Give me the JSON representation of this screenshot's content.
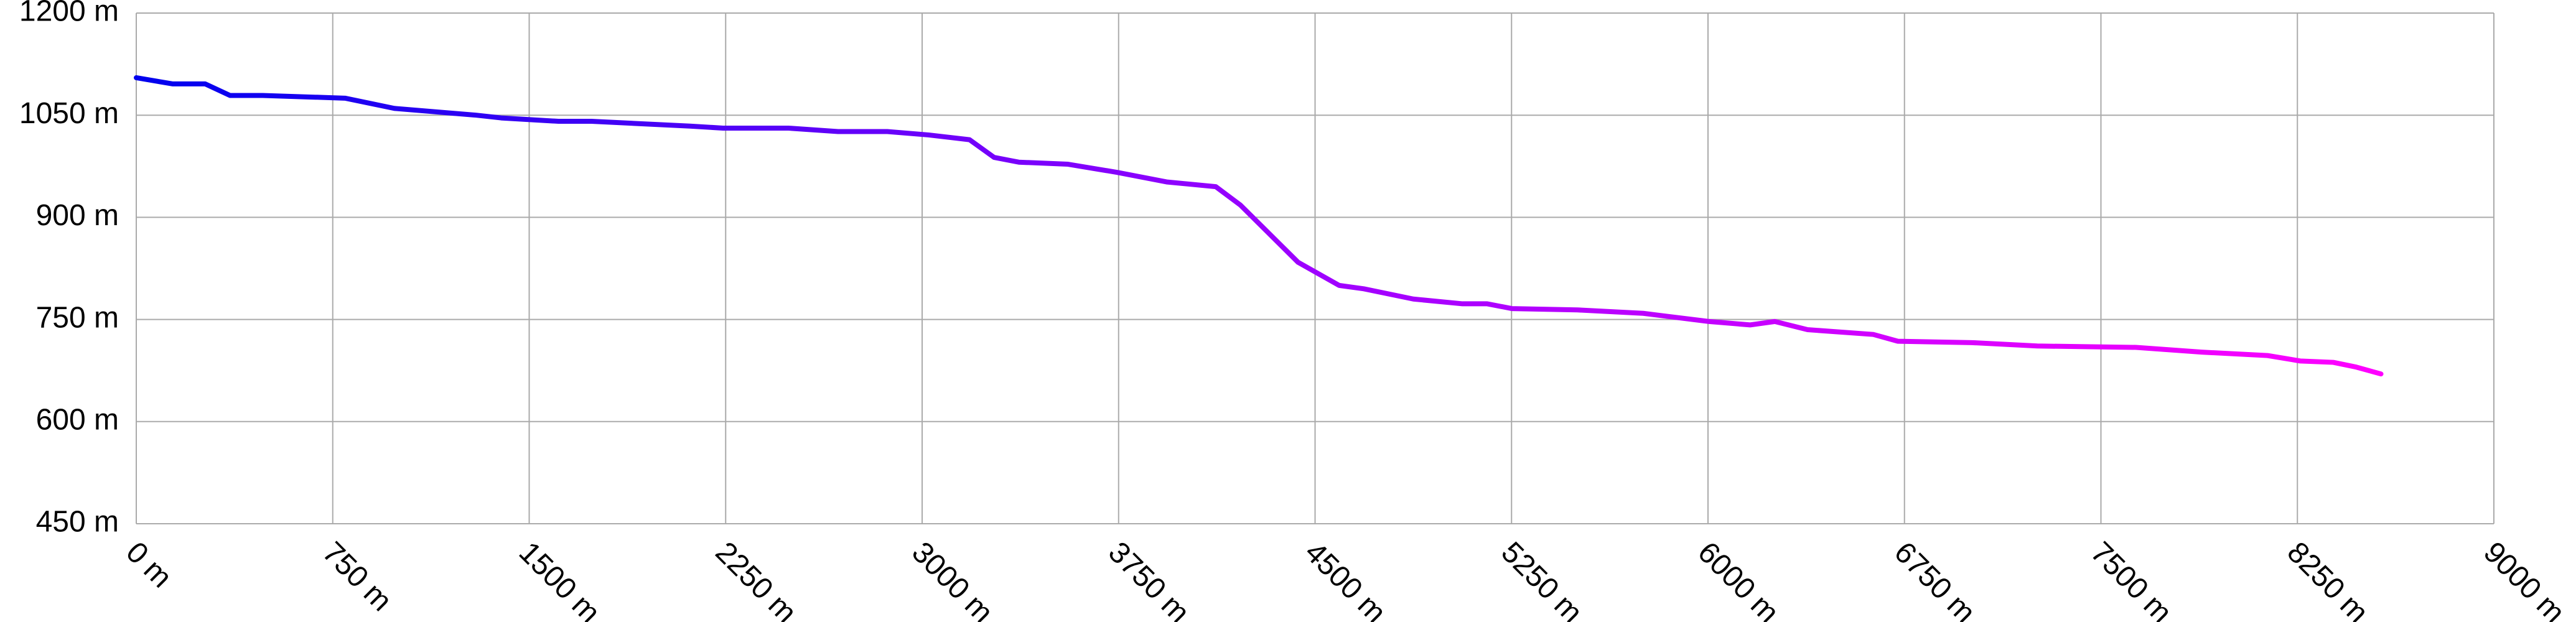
{
  "chart_data": {
    "type": "line",
    "x": [
      0,
      138,
      263,
      358,
      483,
      797,
      985,
      1298,
      1393,
      1612,
      1738,
      2114,
      2240,
      2490,
      2679,
      2867,
      3024,
      3181,
      3275,
      3369,
      3557,
      3745,
      3933,
      4121,
      4215,
      4435,
      4592,
      4686,
      4875,
      5063,
      5157,
      5251,
      5502,
      5753,
      6004,
      6161,
      6255,
      6380,
      6631,
      6725,
      7007,
      7257,
      7634,
      7885,
      8136,
      8261,
      8387,
      8475,
      8569
    ],
    "series": [
      {
        "gradient": [
          "#0000ee",
          "#9900ff",
          "#ff00ff"
        ],
        "values": [
          1105,
          1096,
          1096,
          1079,
          1079,
          1075,
          1060,
          1050,
          1046,
          1041,
          1041,
          1034,
          1031,
          1031,
          1026,
          1026,
          1021,
          1014,
          988,
          981,
          978,
          966,
          952,
          945,
          918,
          834,
          800,
          795,
          780,
          773,
          773,
          766,
          764,
          759,
          747,
          742,
          747,
          735,
          728,
          718,
          716,
          711,
          709,
          702,
          697,
          689,
          687,
          680,
          670
        ]
      }
    ],
    "xlim": [
      0,
      9000
    ],
    "xticks": [
      {
        "value": 0,
        "label": "0 m"
      },
      {
        "value": 750,
        "label": "750 m"
      },
      {
        "value": 1500,
        "label": "1500 m"
      },
      {
        "value": 2250,
        "label": "2250 m"
      },
      {
        "value": 3000,
        "label": "3000 m"
      },
      {
        "value": 3750,
        "label": "3750 m"
      },
      {
        "value": 4500,
        "label": "4500 m"
      },
      {
        "value": 5250,
        "label": "5250 m"
      },
      {
        "value": 6000,
        "label": "6000 m"
      },
      {
        "value": 6750,
        "label": "6750 m"
      },
      {
        "value": 7500,
        "label": "7500 m"
      },
      {
        "value": 8250,
        "label": "8250 m"
      },
      {
        "value": 9000,
        "label": "9000 m"
      }
    ],
    "ylim": [
      450,
      1200
    ],
    "yticks": [
      {
        "value": 450,
        "label": "450 m"
      },
      {
        "value": 600,
        "label": "600 m"
      },
      {
        "value": 750,
        "label": "750 m"
      },
      {
        "value": 900,
        "label": "900 m"
      },
      {
        "value": 1050,
        "label": "1050 m"
      },
      {
        "value": 1200,
        "label": "1200 m"
      }
    ],
    "grid": true
  }
}
